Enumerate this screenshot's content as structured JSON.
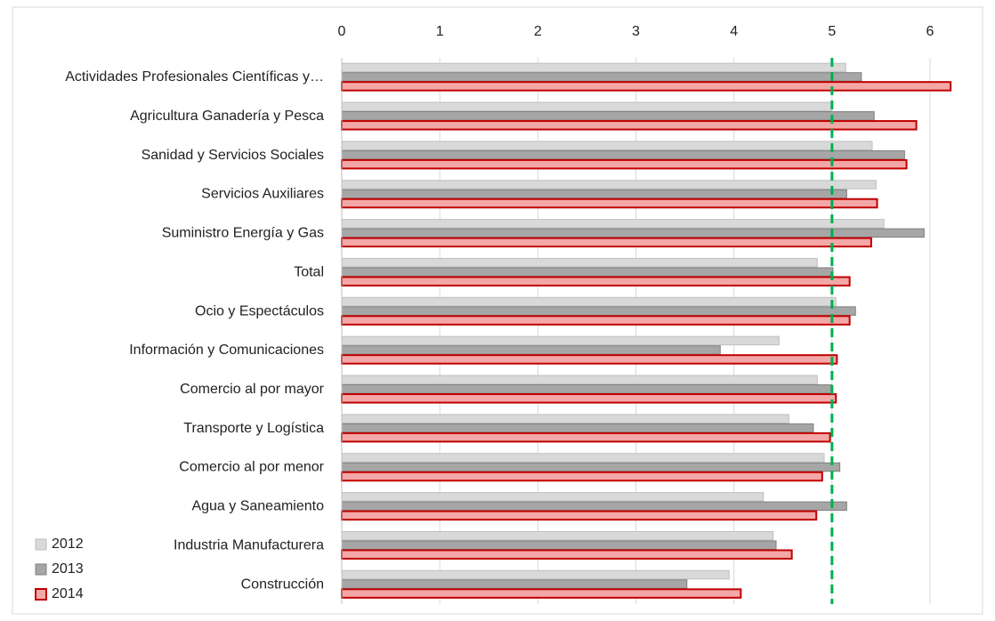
{
  "chart_data": {
    "type": "bar",
    "orientation": "horizontal",
    "categories": [
      "Actividades Profesionales Científicas y…",
      "Agricultura Ganadería y Pesca",
      "Sanidad y Servicios Sociales",
      "Servicios Auxiliares",
      "Suministro Energía y Gas",
      "Total",
      "Ocio y Espectáculos",
      "Información y Comunicaciones",
      "Comercio al por mayor",
      "Transporte y Logística",
      "Comercio al por menor",
      "Agua y Saneamiento",
      "Industria Manufacturera",
      "Construcción"
    ],
    "series": [
      {
        "name": "2012",
        "color": "#d9d9d9",
        "edge": "#bfbfbf",
        "values": [
          5.14,
          5.0,
          5.41,
          5.45,
          5.53,
          4.85,
          5.04,
          4.46,
          4.85,
          4.56,
          4.92,
          4.3,
          4.4,
          3.95
        ]
      },
      {
        "name": "2013",
        "color": "#a6a6a6",
        "edge": "#7f7f7f",
        "values": [
          5.3,
          5.43,
          5.74,
          5.15,
          5.94,
          5.01,
          5.24,
          3.86,
          5.0,
          4.81,
          5.08,
          5.15,
          4.43,
          3.52
        ]
      },
      {
        "name": "2014",
        "color": "#f4a7a7",
        "edge": "#c00000",
        "values": [
          6.21,
          5.86,
          5.76,
          5.46,
          5.4,
          5.18,
          5.18,
          5.05,
          5.04,
          4.98,
          4.9,
          4.84,
          4.59,
          4.07
        ]
      }
    ],
    "xlim": [
      0,
      6
    ],
    "xticks": [
      0,
      1,
      2,
      3,
      4,
      5,
      6
    ],
    "grid": true,
    "reference_line": 5,
    "reference_color": "#00b050",
    "legend": "lower left"
  }
}
